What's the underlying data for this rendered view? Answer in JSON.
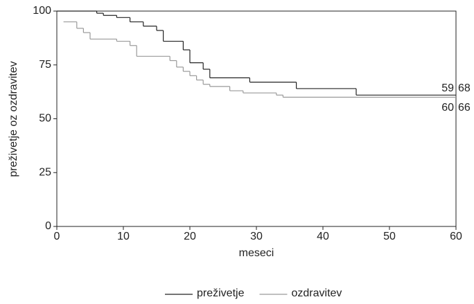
{
  "chart_data": {
    "type": "step",
    "xlabel": "meseci",
    "ylabel": "preživetje oz ozdravitev",
    "xlim": [
      0,
      60
    ],
    "xticks": [
      0,
      10,
      20,
      30,
      40,
      50,
      60
    ],
    "ylim": [
      0,
      100
    ],
    "yticks": [
      0,
      25,
      50,
      75,
      100
    ],
    "series": [
      {
        "name": "preživetje",
        "color": "#222222",
        "x": [
          0,
          6,
          7,
          9,
          11,
          13,
          15,
          16,
          19,
          20,
          22,
          23,
          29,
          36,
          45,
          60
        ],
        "values": [
          100,
          99,
          98,
          97,
          95,
          93,
          91,
          86,
          82,
          76,
          73,
          69,
          67,
          64,
          61,
          61
        ]
      },
      {
        "name": "ozdravitev",
        "color": "#999999",
        "x": [
          1,
          3,
          4,
          5,
          9,
          11,
          12,
          17,
          18,
          19,
          20,
          21,
          22,
          23,
          26,
          28,
          33,
          34,
          60
        ],
        "values": [
          95,
          92,
          90,
          87,
          86,
          84,
          79,
          77,
          74,
          72,
          70,
          68,
          66,
          65,
          63,
          62,
          61,
          60,
          60
        ]
      }
    ],
    "annotations": [
      [
        "59",
        "68"
      ],
      [
        "60",
        "66"
      ]
    ]
  }
}
